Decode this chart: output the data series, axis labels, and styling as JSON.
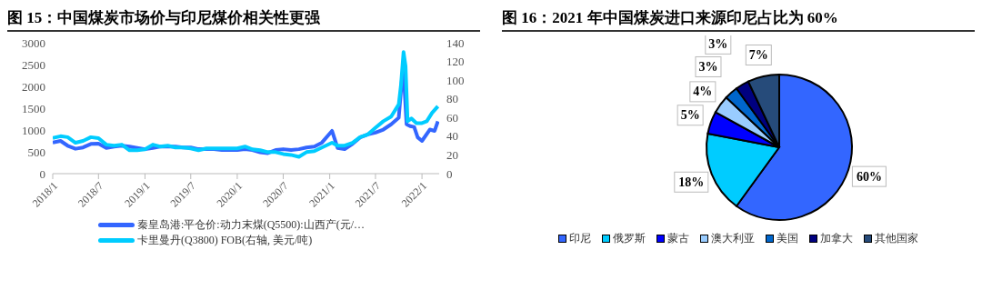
{
  "chart_data": [
    {
      "type": "line",
      "title": "图 15：中国煤炭市场价与印尼煤价相关性更强",
      "legend": "bottom",
      "xlim": [
        "2018-01",
        "2022-03-10"
      ],
      "xticks": [
        {
          "value": "2018-01",
          "label": "2018/1"
        },
        {
          "value": "2018-07",
          "label": "2018/7"
        },
        {
          "value": "2019-01",
          "label": "2019/1"
        },
        {
          "value": "2019-07",
          "label": "2019/7"
        },
        {
          "value": "2020-01",
          "label": "2020/1"
        },
        {
          "value": "2020-07",
          "label": "2020/7"
        },
        {
          "value": "2021-01",
          "label": "2021/1"
        },
        {
          "value": "2021-07",
          "label": "2021/7"
        },
        {
          "value": "2022-01",
          "label": "2022/1"
        }
      ],
      "ylim": [
        0,
        3000
      ],
      "yticks": [
        0,
        500,
        1000,
        1500,
        2000,
        2500,
        3000
      ],
      "y2lim": [
        0,
        140
      ],
      "y2ticks": [
        0,
        20,
        40,
        60,
        80,
        100,
        120,
        140
      ],
      "series": [
        {
          "name": "秦皇岛港:平仓价:动力末煤(Q5500):山西产(元/…",
          "color": "#3366ff",
          "x": [
            "2018-01",
            "2018-02",
            "2018-03",
            "2018-04",
            "2018-05",
            "2018-06",
            "2018-07",
            "2018-08",
            "2018-09",
            "2018-10",
            "2018-11",
            "2018-12",
            "2019-01",
            "2019-02",
            "2019-03",
            "2019-04",
            "2019-05",
            "2019-06",
            "2019-07",
            "2019-08",
            "2019-09",
            "2019-10",
            "2019-11",
            "2019-12",
            "2020-01",
            "2020-02",
            "2020-03",
            "2020-04",
            "2020-05",
            "2020-06",
            "2020-07",
            "2020-08",
            "2020-09",
            "2020-10",
            "2020-11",
            "2020-12",
            "2021-01-10",
            "2021-02",
            "2021-03",
            "2021-04",
            "2021-05",
            "2021-06",
            "2021-07",
            "2021-08",
            "2021-09",
            "2021-10-01",
            "2021-10-15",
            "2021-10-20",
            "2021-11-01",
            "2021-11-15",
            "2021-12-01",
            "2021-12-15",
            "2022-01-01",
            "2022-02-01",
            "2022-02-20",
            "2022-03-05"
          ],
          "values": [
            710,
            750,
            640,
            570,
            600,
            680,
            690,
            590,
            620,
            640,
            620,
            590,
            560,
            590,
            620,
            620,
            620,
            600,
            600,
            560,
            560,
            560,
            540,
            540,
            540,
            560,
            540,
            490,
            470,
            540,
            560,
            540,
            560,
            600,
            620,
            710,
            980,
            590,
            560,
            680,
            830,
            900,
            940,
            1010,
            1130,
            1280,
            2250,
            2350,
            1130,
            1090,
            1070,
            830,
            750,
            1010,
            980,
            1200
          ]
        },
        {
          "name": "卡里曼丹(Q3800) FOB(右轴, 美元/吨)",
          "color": "#00ccff",
          "axis": "y2",
          "x": [
            "2018-01",
            "2018-02",
            "2018-03",
            "2018-04",
            "2018-05",
            "2018-06",
            "2018-07",
            "2018-08",
            "2018-09",
            "2018-10",
            "2018-11",
            "2018-12",
            "2019-01",
            "2019-02",
            "2019-03",
            "2019-04",
            "2019-05",
            "2019-06",
            "2019-07",
            "2019-08",
            "2019-09",
            "2019-10",
            "2019-11",
            "2019-12",
            "2020-01",
            "2020-02",
            "2020-03",
            "2020-04",
            "2020-05",
            "2020-06",
            "2020-07",
            "2020-08",
            "2020-09",
            "2020-10",
            "2020-11",
            "2020-12",
            "2021-01-10",
            "2021-02",
            "2021-03",
            "2021-04",
            "2021-05",
            "2021-06",
            "2021-07",
            "2021-08",
            "2021-09",
            "2021-10-01",
            "2021-10-10",
            "2021-10-20",
            "2021-10-28",
            "2021-11-05",
            "2021-11-20",
            "2021-12-10",
            "2022-01-01",
            "2022-01-20",
            "2022-02-10",
            "2022-03-05"
          ],
          "values": [
            38,
            40,
            39,
            33,
            35,
            39,
            38,
            31,
            30,
            31,
            25,
            25,
            26,
            31,
            29,
            30,
            28,
            28,
            27,
            25,
            27,
            27,
            27,
            27,
            27,
            29,
            26,
            25,
            23,
            23,
            21,
            20,
            18,
            23,
            24,
            28,
            33,
            30,
            30,
            33,
            39,
            42,
            49,
            56,
            61,
            74,
            95,
            130,
            115,
            56,
            59,
            54,
            54,
            56,
            65,
            72
          ]
        }
      ]
    },
    {
      "type": "pie",
      "title": "图 16：2021 年中国煤炭进口来源印尼占比为 60%",
      "legend": "bottom",
      "categories": [
        "印尼",
        "俄罗斯",
        "蒙古",
        "澳大利亚",
        "美国",
        "加拿大",
        "其他国家"
      ],
      "values": [
        60,
        18,
        5,
        4,
        3,
        3,
        7
      ],
      "colors": [
        "#3366ff",
        "#00ccff",
        "#0000ff",
        "#99ccff",
        "#0066cc",
        "#000080",
        "#264b7a"
      ],
      "value_labels": [
        "60%",
        "18%",
        "5%",
        "4%",
        "3%",
        "3%",
        "7%"
      ]
    }
  ]
}
